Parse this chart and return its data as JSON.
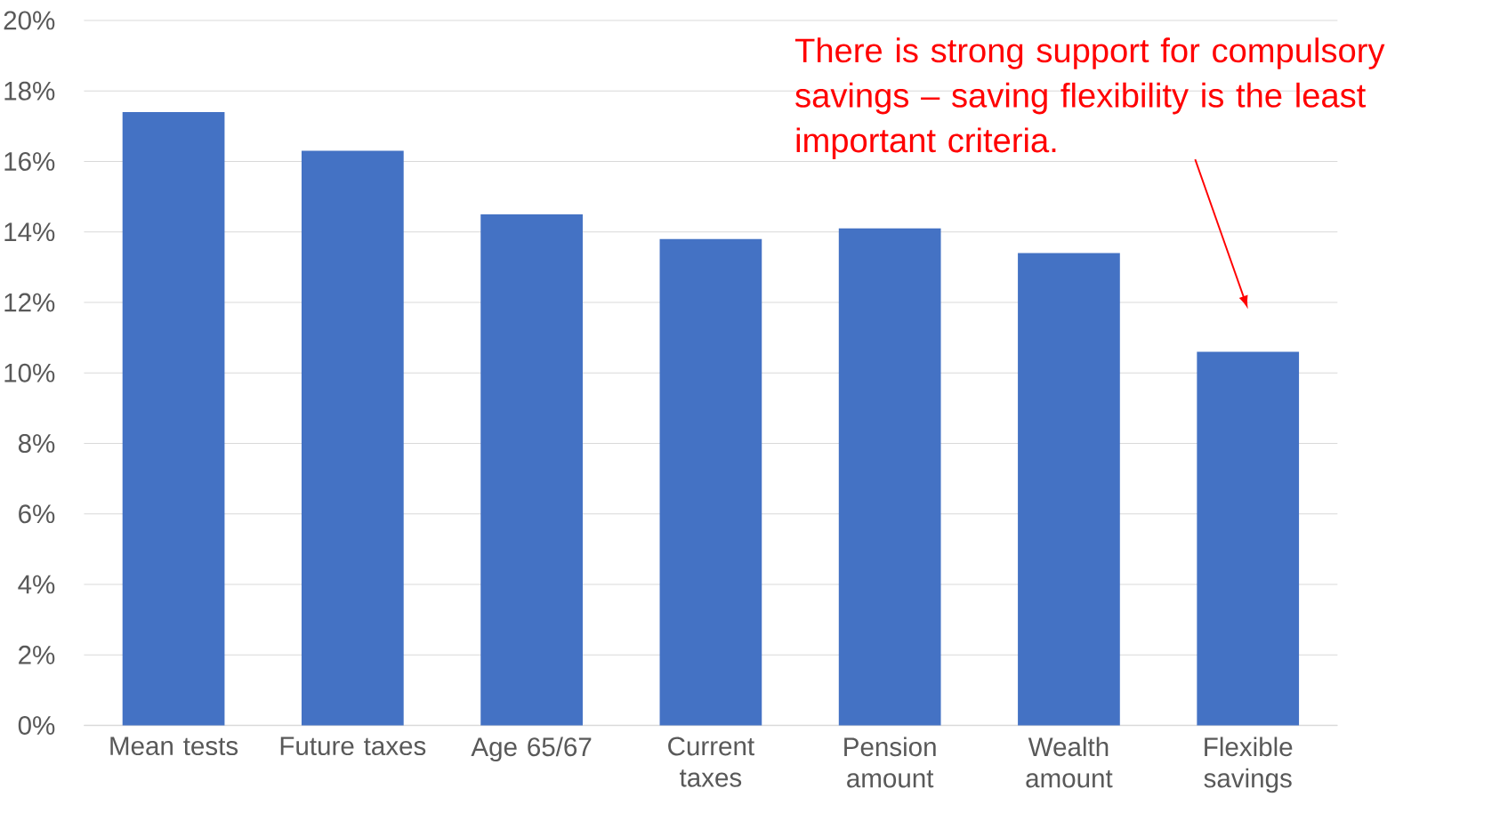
{
  "chart_data": {
    "type": "bar",
    "categories": [
      "Mean tests",
      "Future taxes",
      "Age 65/67",
      "Current taxes",
      "Pension amount",
      "Wealth amount",
      "Flexible savings"
    ],
    "values": [
      17.4,
      16.3,
      14.5,
      13.8,
      14.1,
      13.4,
      10.6
    ],
    "color": "#4472c4",
    "ylim": [
      0,
      20
    ],
    "yticks": [
      {
        "value": 0,
        "label": "0%"
      },
      {
        "value": 2,
        "label": "2%"
      },
      {
        "value": 4,
        "label": "4%"
      },
      {
        "value": 6,
        "label": "6%"
      },
      {
        "value": 8,
        "label": "8%"
      },
      {
        "value": 10,
        "label": "10%"
      },
      {
        "value": 12,
        "label": "12%"
      },
      {
        "value": 14,
        "label": "14%"
      },
      {
        "value": 16,
        "label": "16%"
      },
      {
        "value": 18,
        "label": "18%"
      },
      {
        "value": 20,
        "label": "20%"
      }
    ],
    "grid": "y",
    "annotations": [
      "There is strong support for compulsory savings – saving flexibility is the least important criteria."
    ]
  }
}
